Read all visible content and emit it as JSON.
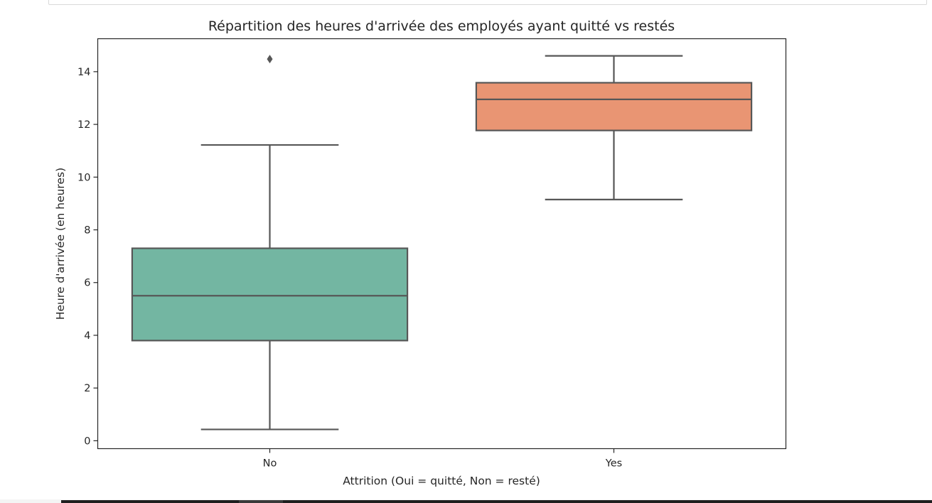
{
  "chart_data": {
    "type": "box",
    "title": "Répartition des heures d'arrivée des employés ayant quitté vs restés",
    "xlabel": "Attrition (Oui = quitté, Non = resté)",
    "ylabel": "Heure d'arrivée (en heures)",
    "categories": [
      "No",
      "Yes"
    ],
    "ylim": [
      -0.3,
      15.25
    ],
    "yticks": [
      0,
      2,
      4,
      6,
      8,
      10,
      12,
      14
    ],
    "boxes": [
      {
        "category": "No",
        "whisker_low": 0.43,
        "q1": 3.8,
        "median": 5.5,
        "q3": 7.3,
        "whisker_high": 11.22,
        "outliers": [
          14.48
        ],
        "color": "#73b6a2"
      },
      {
        "category": "Yes",
        "whisker_low": 9.15,
        "q1": 11.77,
        "median": 12.95,
        "q3": 13.58,
        "whisker_high": 14.6,
        "outliers": [],
        "color": "#e99573"
      }
    ],
    "grid": false,
    "legend": "none"
  },
  "colors": {
    "line": "#575757",
    "axis": "#262626"
  }
}
